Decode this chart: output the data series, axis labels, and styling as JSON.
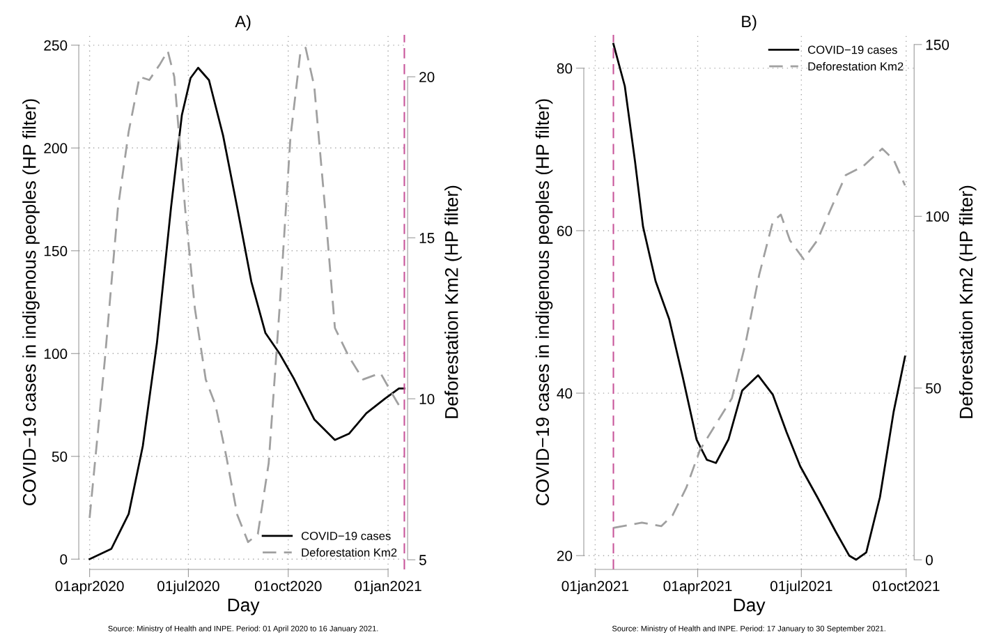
{
  "chart_data": [
    {
      "type": "line",
      "title": "A)",
      "xlabel": "Day",
      "ylabel": "COVID−19 cases in indigenous peoples (HP filter)",
      "y2label": "Deforestation Km2 (HP filter)",
      "xlim": [
        "2020-03-22",
        "2021-01-19"
      ],
      "xticks": [
        {
          "value": "2020-04-01",
          "label": "01apr2020"
        },
        {
          "value": "2020-07-01",
          "label": "01jul2020"
        },
        {
          "value": "2020-10-01",
          "label": "01oct2020"
        },
        {
          "value": "2021-01-01",
          "label": "01jan2021"
        }
      ],
      "ylim": [
        -5,
        255
      ],
      "yticks": [
        0,
        50,
        100,
        150,
        200,
        250
      ],
      "y2lim": [
        4.7,
        21.3
      ],
      "y2ticks": [
        5,
        10,
        15,
        20
      ],
      "grid": true,
      "legend": "bottom right",
      "ref_lines": [
        {
          "axis": "x",
          "value": "2021-01-16",
          "color": "#c8559a",
          "line_style": "dashed"
        }
      ],
      "series": [
        {
          "name": "COVID−19 cases",
          "color": "#000000",
          "line_style": "solid",
          "x": [
            "2020-04-01",
            "2020-04-21",
            "2020-05-07",
            "2020-05-20",
            "2020-06-02",
            "2020-06-15",
            "2020-06-25",
            "2020-07-03",
            "2020-07-10",
            "2020-07-20",
            "2020-08-02",
            "2020-08-15",
            "2020-08-28",
            "2020-09-10",
            "2020-09-23",
            "2020-10-06",
            "2020-10-25",
            "2020-11-13",
            "2020-11-26",
            "2020-12-12",
            "2020-12-29",
            "2021-01-11",
            "2021-01-16"
          ],
          "values": [
            0,
            5,
            22,
            55,
            105,
            171,
            216,
            234,
            239,
            233,
            206,
            171,
            135,
            110,
            100,
            88,
            68,
            58,
            61,
            71,
            78,
            83,
            83
          ]
        },
        {
          "name": "Deforestation Km2",
          "color": "#a0a0a0",
          "line_style": "dashed",
          "axis": "y2",
          "x": [
            "2020-04-01",
            "2020-04-15",
            "2020-04-27",
            "2020-05-07",
            "2020-05-17",
            "2020-05-26",
            "2020-06-05",
            "2020-06-12",
            "2020-06-18",
            "2020-06-28",
            "2020-07-07",
            "2020-07-17",
            "2020-07-26",
            "2020-08-05",
            "2020-08-15",
            "2020-08-25",
            "2020-09-03",
            "2020-09-13",
            "2020-09-23",
            "2020-10-03",
            "2020-10-12",
            "2020-10-17",
            "2020-10-25",
            "2020-11-04",
            "2020-11-13",
            "2020-11-26",
            "2020-12-09",
            "2020-12-25",
            "2021-01-04",
            "2021-01-11",
            "2021-01-16"
          ],
          "values": [
            6.3,
            11.2,
            15.9,
            18.3,
            20.0,
            19.9,
            20.4,
            20.8,
            20.0,
            15.9,
            12.8,
            10.6,
            9.8,
            8.2,
            6.4,
            5.55,
            5.8,
            8.0,
            12.8,
            18.1,
            20.7,
            20.9,
            19.7,
            15.9,
            12.2,
            11.3,
            10.6,
            10.8,
            10.2,
            9.8,
            9.7
          ]
        }
      ],
      "annotations": [
        "Source: Ministry of Health and INPE. Period: 01 April 2020 to 16 January 2021."
      ]
    },
    {
      "type": "line",
      "title": "B)",
      "xlabel": "Day",
      "ylabel": "COVID−19 cases in indigenous peoples (HP filter)",
      "y2label": "Deforestation Km2 (HP filter)",
      "xlim": [
        "2020-12-22",
        "2021-10-08"
      ],
      "xticks": [
        {
          "value": "2021-01-01",
          "label": "01jan2021"
        },
        {
          "value": "2021-04-01",
          "label": "01apr2021"
        },
        {
          "value": "2021-07-01",
          "label": "01jul2021"
        },
        {
          "value": "2021-10-01",
          "label": "01oct2021"
        }
      ],
      "ylim": [
        18.3,
        84.1
      ],
      "yticks": [
        20,
        40,
        60,
        80
      ],
      "y2lim": [
        -2.8,
        152.8
      ],
      "y2ticks": [
        0,
        50,
        100,
        150
      ],
      "grid": true,
      "legend": "top right",
      "ref_lines": [
        {
          "axis": "x",
          "value": "2021-01-17",
          "color": "#c8559a",
          "line_style": "dashed"
        }
      ],
      "series": [
        {
          "name": "COVID−19 cases",
          "color": "#000000",
          "line_style": "solid",
          "x": [
            "2021-01-17",
            "2021-01-27",
            "2021-02-05",
            "2021-02-12",
            "2021-02-23",
            "2021-03-07",
            "2021-03-19",
            "2021-03-31",
            "2021-04-09",
            "2021-04-17",
            "2021-04-28",
            "2021-05-10",
            "2021-05-24",
            "2021-06-06",
            "2021-06-18",
            "2021-06-30",
            "2021-07-15",
            "2021-07-31",
            "2021-08-12",
            "2021-08-18",
            "2021-08-27",
            "2021-09-08",
            "2021-09-20",
            "2021-09-30"
          ],
          "values": [
            83.0,
            77.8,
            68.5,
            60.5,
            53.8,
            49.1,
            41.9,
            34.3,
            31.8,
            31.4,
            34.3,
            40.3,
            42.2,
            39.8,
            35.2,
            31.0,
            27.2,
            23.0,
            20.0,
            19.5,
            20.4,
            27.2,
            37.7,
            44.5
          ]
        },
        {
          "name": "Deforestation Km2",
          "color": "#a0a0a0",
          "line_style": "dashed",
          "axis": "y2",
          "x": [
            "2021-01-17",
            "2021-02-11",
            "2021-02-28",
            "2021-03-10",
            "2021-03-22",
            "2021-04-03",
            "2021-04-16",
            "2021-05-01",
            "2021-05-13",
            "2021-05-25",
            "2021-06-06",
            "2021-06-13",
            "2021-06-21",
            "2021-07-03",
            "2021-07-15",
            "2021-07-28",
            "2021-08-09",
            "2021-08-24",
            "2021-09-10",
            "2021-09-20",
            "2021-09-30"
          ],
          "values": [
            9.3,
            10.8,
            9.8,
            13,
            21,
            32,
            39,
            47,
            63,
            83,
            98.5,
            100.5,
            93,
            87.5,
            93,
            103,
            112,
            114.5,
            119.7,
            116.5,
            109
          ]
        }
      ],
      "annotations": [
        "Source: Ministry of Health and INPE. Period: 17 January to 30 September 2021."
      ]
    }
  ]
}
